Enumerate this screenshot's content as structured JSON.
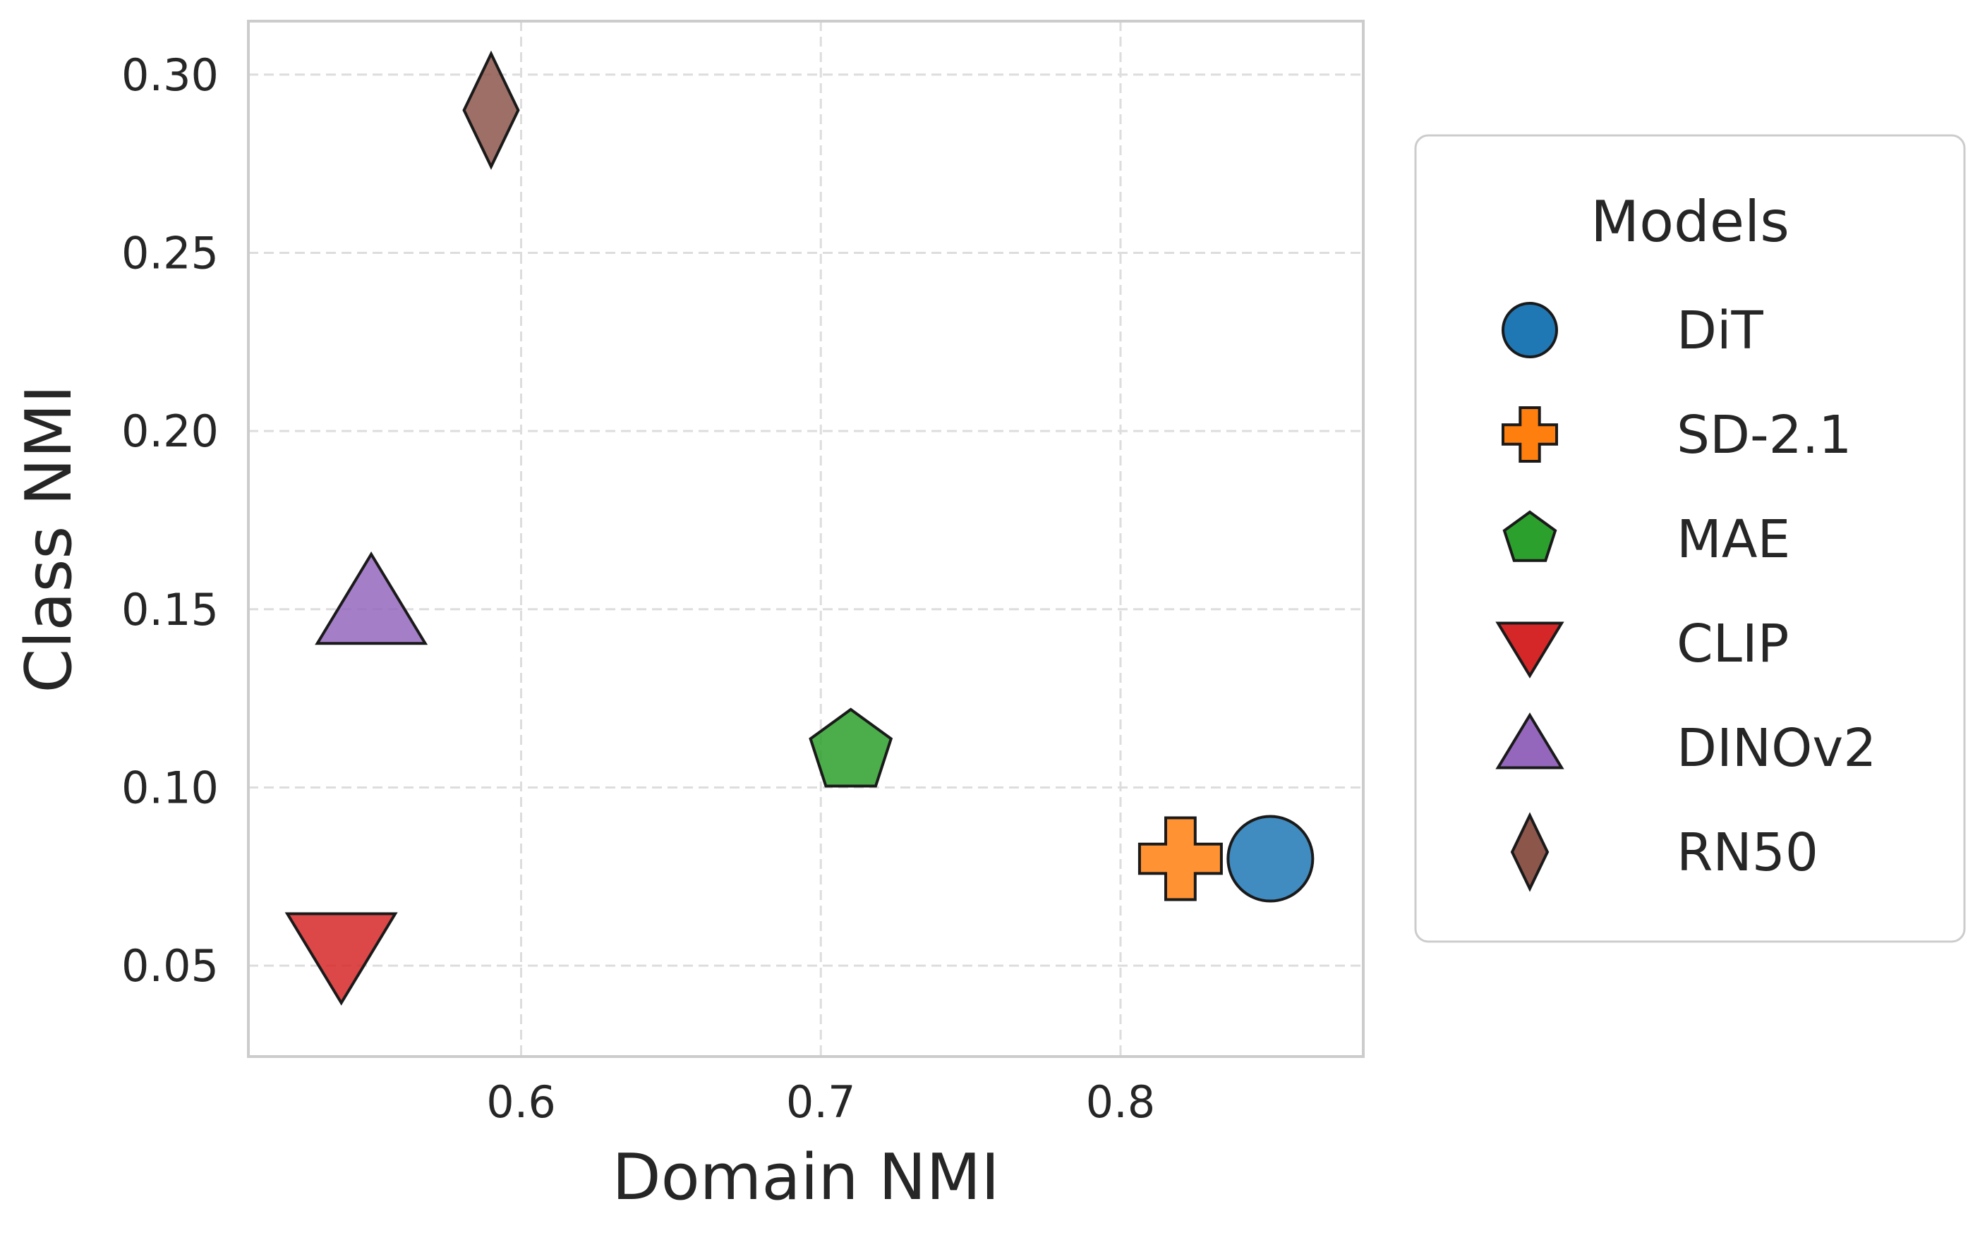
{
  "chart_data": {
    "type": "scatter",
    "xlabel": "Domain NMI",
    "ylabel": "Class NMI",
    "xlim": [
      0.509,
      0.881
    ],
    "ylim": [
      0.0245,
      0.315
    ],
    "xticks": [
      0.6,
      0.7,
      0.8
    ],
    "xtick_labels": [
      "0.6",
      "0.7",
      "0.8"
    ],
    "yticks": [
      0.05,
      0.1,
      0.15,
      0.2,
      0.25,
      0.3
    ],
    "ytick_labels": [
      "0.05",
      "0.10",
      "0.15",
      "0.20",
      "0.25",
      "0.30"
    ],
    "grid": true,
    "grid_style": "dashed",
    "legend": {
      "title": "Models",
      "placement": "right, outside plot"
    },
    "series": [
      {
        "name": "DiT",
        "marker": "circle",
        "color": "#1f77b4",
        "x": 0.85,
        "y": 0.08
      },
      {
        "name": "SD-2.1",
        "marker": "plus",
        "color": "#ff7f0e",
        "x": 0.82,
        "y": 0.08
      },
      {
        "name": "MAE",
        "marker": "pentagon",
        "color": "#2ca02c",
        "x": 0.71,
        "y": 0.11
      },
      {
        "name": "CLIP",
        "marker": "triangle-down",
        "color": "#d62728",
        "x": 0.54,
        "y": 0.055
      },
      {
        "name": "DINOv2",
        "marker": "triangle-up",
        "color": "#9467bd",
        "x": 0.55,
        "y": 0.15
      },
      {
        "name": "RN50",
        "marker": "diamond",
        "color": "#8c564b",
        "x": 0.59,
        "y": 0.29
      }
    ]
  }
}
